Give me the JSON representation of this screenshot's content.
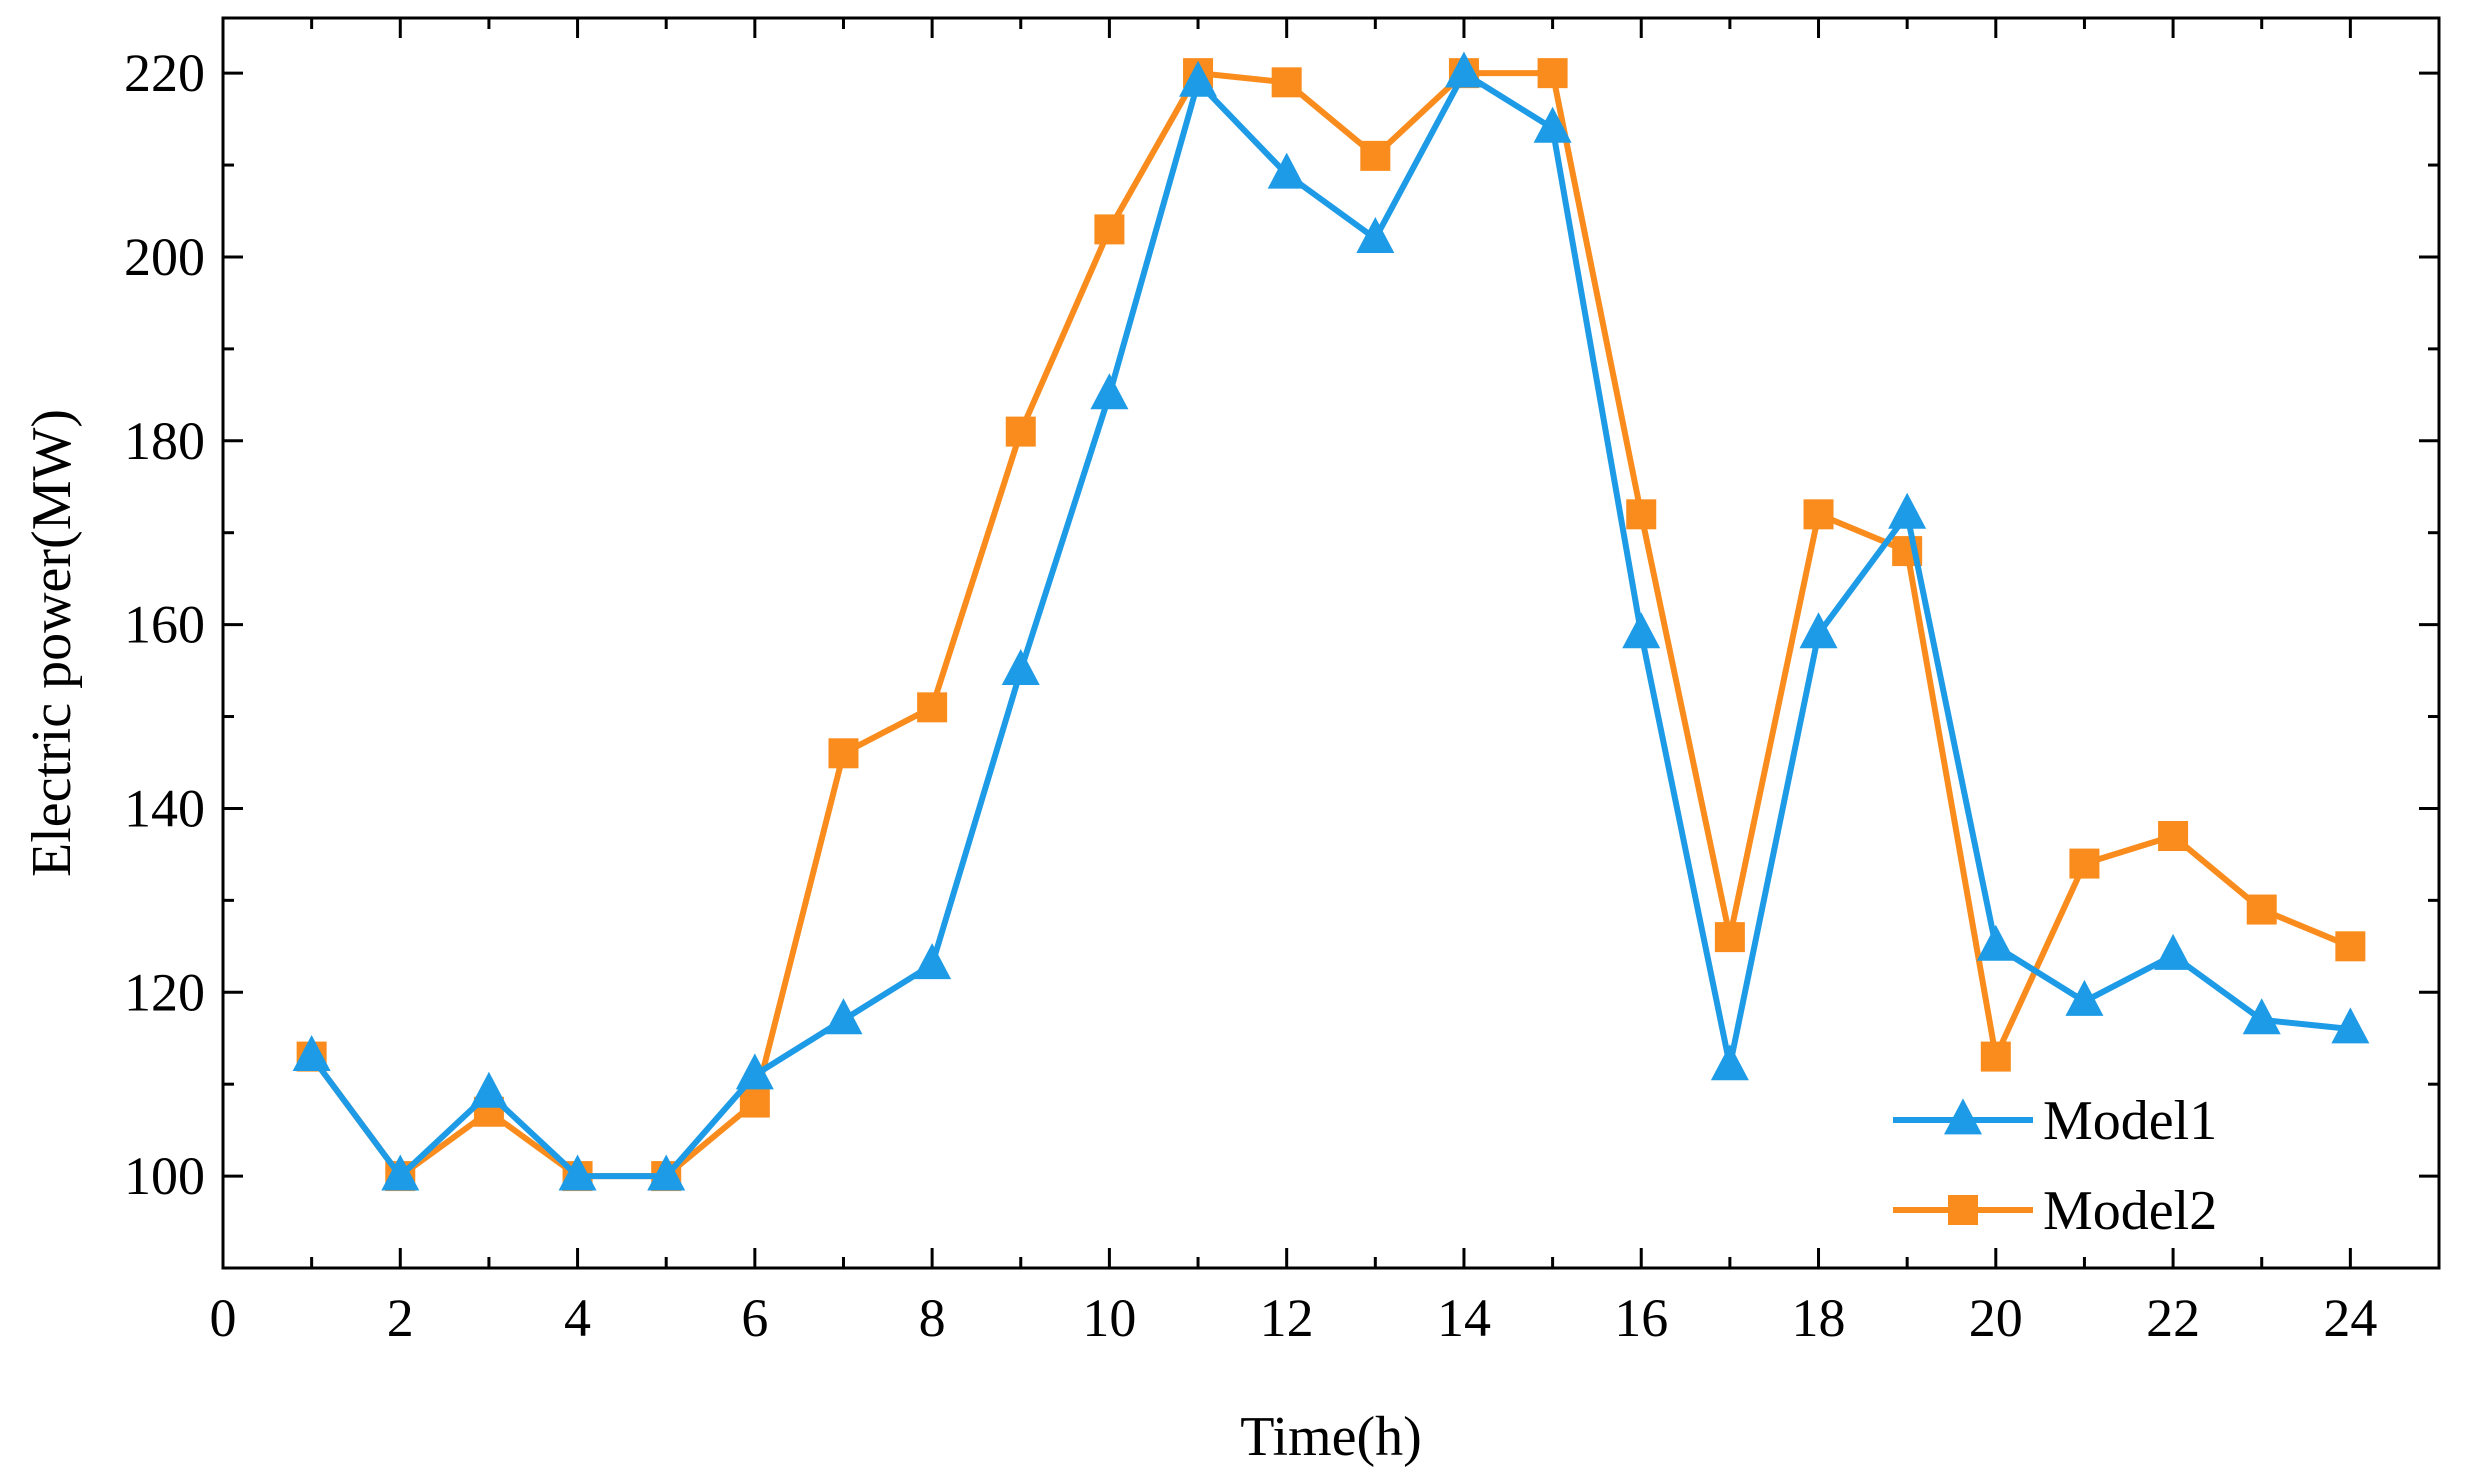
{
  "chart_data": {
    "type": "line",
    "xlabel": "Time(h)",
    "ylabel": "Electric power(MW)",
    "xlim": [
      0,
      25
    ],
    "ylim": [
      90,
      226
    ],
    "xticks": [
      0,
      2,
      4,
      6,
      8,
      10,
      12,
      14,
      16,
      18,
      20,
      22,
      24
    ],
    "yticks": [
      100,
      120,
      140,
      160,
      180,
      200,
      220
    ],
    "grid": false,
    "legend_position": "bottom-right",
    "x": [
      1,
      2,
      3,
      4,
      5,
      6,
      7,
      8,
      9,
      10,
      11,
      12,
      13,
      14,
      15,
      16,
      17,
      18,
      19,
      20,
      21,
      22,
      23,
      24
    ],
    "series": [
      {
        "name": "Model1",
        "color": "#1e9be6",
        "marker": "triangle",
        "values": [
          113,
          100,
          109,
          100,
          100,
          111,
          117,
          123,
          155,
          185,
          219,
          209,
          202,
          220,
          214,
          159,
          112,
          159,
          172,
          125,
          119,
          124,
          117,
          116
        ]
      },
      {
        "name": "Model2",
        "color": "#f98c1d",
        "marker": "square",
        "values": [
          113,
          100,
          107,
          100,
          100,
          108,
          146,
          151,
          181,
          203,
          220,
          219,
          211,
          220,
          220,
          172,
          126,
          172,
          168,
          113,
          134,
          137,
          129,
          125
        ]
      }
    ]
  }
}
